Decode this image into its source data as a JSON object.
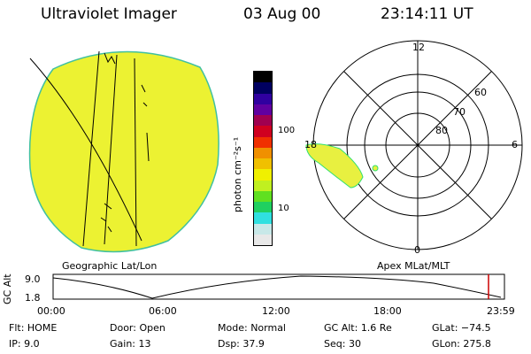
{
  "header": {
    "instrument": "Ultraviolet Imager",
    "date": "03 Aug 00",
    "time": "23:14:11  UT"
  },
  "colorbar": {
    "unit_label": "photon cm⁻²s⁻¹",
    "ticks": [
      "100",
      "10"
    ],
    "scale": "log",
    "colors": [
      "#e8e8e8",
      "#c8e8e8",
      "#30e0e0",
      "#20d060",
      "#60e020",
      "#c0f020",
      "#f0f000",
      "#f0c000",
      "#f09000",
      "#f03000",
      "#d00020",
      "#a00050",
      "#6000a0",
      "#3000a0",
      "#000060",
      "#000000"
    ]
  },
  "polar_plot": {
    "mlt_labels": [
      "12",
      "6",
      "0",
      "18"
    ],
    "lat_labels": [
      "60",
      "70",
      "80"
    ]
  },
  "panel_labels": {
    "left": "Geographic Lat/Lon",
    "right": "Apex MLat/MLT"
  },
  "altitude_plot": {
    "ylabel": "GC Alt",
    "yticks": [
      "9.0",
      "1.8"
    ],
    "xticks": [
      "00:00",
      "06:00",
      "12:00",
      "18:00",
      "23:59"
    ],
    "marker_color": "#cc0000"
  },
  "status": {
    "flt_label": "Flt:",
    "flt_value": "HOME",
    "ip_label": "IP:",
    "ip_value": "9.0",
    "door_label": "Door:",
    "door_value": "Open",
    "gain_label": "Gain:",
    "gain_value": "13",
    "mode_label": "Mode:",
    "mode_value": "Normal",
    "dsp_label": "Dsp:",
    "dsp_value": "37.9",
    "gcalt_label": "GC Alt:",
    "gcalt_value": "1.6 Re",
    "seq_label": "Seq:",
    "seq_value": "30",
    "glat_label": "GLat:",
    "glat_value": "−74.5",
    "glon_label": "GLon:",
    "glon_value": "275.8"
  },
  "colors": {
    "image_fill": "#ecf232",
    "image_edge": "#40c0a0",
    "oval_fill": "#e8f040"
  }
}
